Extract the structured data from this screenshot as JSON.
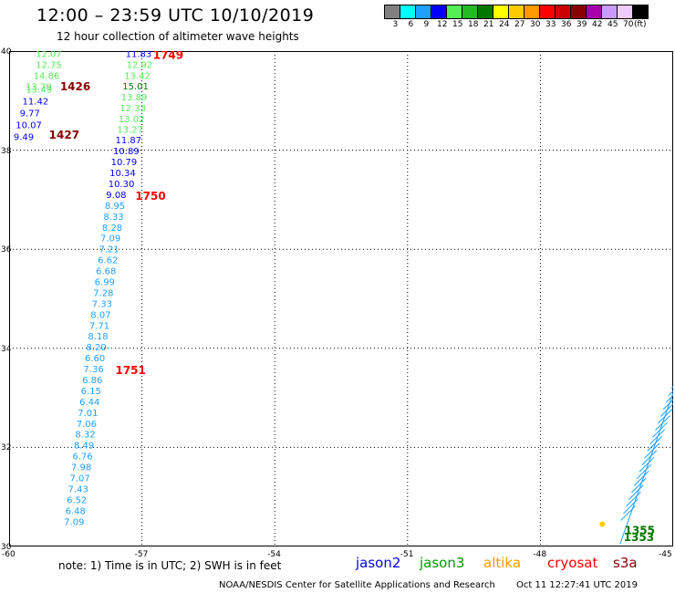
{
  "header": {
    "title": "12:00 – 23:59 UTC 10/10/2019",
    "subtitle": "12 hour collection of altimeter wave heights"
  },
  "color_scale": {
    "labels": [
      "3",
      "6",
      "9",
      "12",
      "15",
      "18",
      "21",
      "24",
      "27",
      "30",
      "33",
      "36",
      "39",
      "42",
      "45",
      "70",
      "(ft)"
    ],
    "colors": [
      "#808080",
      "#00ffff",
      "#1ea0ff",
      "#0000ff",
      "#55ee55",
      "#22bb22",
      "#007700",
      "#ffff00",
      "#ffcc00",
      "#ff9900",
      "#ff0000",
      "#cc0000",
      "#880000",
      "#aa00aa",
      "#cc99ff",
      "#eeccff",
      "#000000"
    ]
  },
  "axes": {
    "y_labels": [
      "40",
      "38",
      "36",
      "34",
      "32",
      "30"
    ],
    "x_labels": [
      "-60",
      "-57",
      "-54",
      "-51",
      "-48",
      "-45"
    ]
  },
  "chart_data": {
    "type": "scatter",
    "title": "12:00 – 23:59 UTC 10/10/2019",
    "subtitle": "12 hour collection of altimeter wave heights",
    "xlabel": "",
    "ylabel": "",
    "xlim": [
      -60,
      -45
    ],
    "ylim": [
      30,
      40
    ],
    "grid": true,
    "units": "(ft)",
    "series": [
      {
        "name": "jason3",
        "color": "#55ee55",
        "points": [
          {
            "lon": -59.4,
            "lat": 39.95,
            "swh": "12.07"
          },
          {
            "lon": -59.4,
            "lat": 39.73,
            "swh": "12.75"
          },
          {
            "lon": -59.45,
            "lat": 39.51,
            "swh": "14.86"
          },
          {
            "lon": -59.63,
            "lat": 39.29,
            "swh": "13.79"
          },
          {
            "lon": -59.62,
            "lat": 39.24,
            "swh": "13.49"
          },
          {
            "lon": -57.37,
            "lat": 39.95,
            "swh": "11.83",
            "color": "#0000ff"
          },
          {
            "lon": -57.35,
            "lat": 39.73,
            "swh": "12.92"
          },
          {
            "lon": -57.4,
            "lat": 39.51,
            "swh": "13.42"
          },
          {
            "lon": -57.44,
            "lat": 39.3,
            "swh": "15.01",
            "color": "#007700"
          },
          {
            "lon": -57.47,
            "lat": 39.08,
            "swh": "13.89"
          },
          {
            "lon": -57.5,
            "lat": 38.86,
            "swh": "12.33"
          },
          {
            "lon": -57.53,
            "lat": 38.64,
            "swh": "13.02"
          },
          {
            "lon": -57.56,
            "lat": 38.43,
            "swh": "13.27"
          }
        ]
      },
      {
        "name": "jason2",
        "color": "#0000ff",
        "points": [
          {
            "lon": -59.7,
            "lat": 39.0,
            "swh": "11.42"
          },
          {
            "lon": -59.76,
            "lat": 38.76,
            "swh": "9.77"
          },
          {
            "lon": -59.85,
            "lat": 38.52,
            "swh": "10.07"
          },
          {
            "lon": -59.9,
            "lat": 38.28,
            "swh": "9.49"
          },
          {
            "lon": -57.6,
            "lat": 38.21,
            "swh": "11.87"
          },
          {
            "lon": -57.65,
            "lat": 37.99,
            "swh": "10.89"
          },
          {
            "lon": -57.7,
            "lat": 37.77,
            "swh": "10.79"
          },
          {
            "lon": -57.73,
            "lat": 37.55,
            "swh": "10.34"
          },
          {
            "lon": -57.76,
            "lat": 37.33,
            "swh": "10.30"
          },
          {
            "lon": -57.81,
            "lat": 37.11,
            "swh": "9.08"
          }
        ]
      },
      {
        "name": "altika",
        "color": "#1ea0ff",
        "points": [
          {
            "lon": -57.84,
            "lat": 36.89,
            "swh": "8.95"
          },
          {
            "lon": -57.87,
            "lat": 36.67,
            "swh": "8.33"
          },
          {
            "lon": -57.9,
            "lat": 36.45,
            "swh": "8.28"
          },
          {
            "lon": -57.94,
            "lat": 36.23,
            "swh": "7.09"
          },
          {
            "lon": -57.97,
            "lat": 36.01,
            "swh": "7.21"
          },
          {
            "lon": -58.0,
            "lat": 35.79,
            "swh": "6.62"
          },
          {
            "lon": -58.04,
            "lat": 35.57,
            "swh": "6.68"
          },
          {
            "lon": -58.07,
            "lat": 35.35,
            "swh": "6.99"
          },
          {
            "lon": -58.1,
            "lat": 35.13,
            "swh": "7.28"
          },
          {
            "lon": -58.13,
            "lat": 34.91,
            "swh": "7.33"
          },
          {
            "lon": -58.16,
            "lat": 34.69,
            "swh": "8.07"
          },
          {
            "lon": -58.19,
            "lat": 34.47,
            "swh": "7.71"
          },
          {
            "lon": -58.22,
            "lat": 34.25,
            "swh": "8.18"
          },
          {
            "lon": -58.26,
            "lat": 34.03,
            "swh": "8.20"
          },
          {
            "lon": -58.29,
            "lat": 33.81,
            "swh": "6.60"
          },
          {
            "lon": -58.32,
            "lat": 33.59,
            "swh": "7.36"
          },
          {
            "lon": -58.35,
            "lat": 33.37,
            "swh": "6.86"
          },
          {
            "lon": -58.38,
            "lat": 33.15,
            "swh": "6.15"
          },
          {
            "lon": -58.41,
            "lat": 32.93,
            "swh": "6.44"
          },
          {
            "lon": -58.45,
            "lat": 32.71,
            "swh": "7.01"
          },
          {
            "lon": -58.48,
            "lat": 32.49,
            "swh": "7.06"
          },
          {
            "lon": -58.51,
            "lat": 32.27,
            "swh": "8.32"
          },
          {
            "lon": -58.54,
            "lat": 32.05,
            "swh": "8.49"
          },
          {
            "lon": -58.57,
            "lat": 31.83,
            "swh": "6.76"
          },
          {
            "lon": -58.6,
            "lat": 31.61,
            "swh": "7.98"
          },
          {
            "lon": -58.63,
            "lat": 31.39,
            "swh": "7.07"
          },
          {
            "lon": -58.67,
            "lat": 31.17,
            "swh": "7.43"
          },
          {
            "lon": -58.7,
            "lat": 30.95,
            "swh": "6.52"
          },
          {
            "lon": -58.73,
            "lat": 30.73,
            "swh": "6.48"
          },
          {
            "lon": -58.76,
            "lat": 30.51,
            "swh": "7.09"
          }
        ]
      }
    ],
    "time_labels": [
      {
        "lon": -58.85,
        "lat": 39.28,
        "text": "1426",
        "color": "#880000"
      },
      {
        "lon": -59.1,
        "lat": 38.31,
        "text": "1427",
        "color": "#880000"
      },
      {
        "lon": -56.75,
        "lat": 39.92,
        "text": "1749",
        "color": "#ff0000"
      },
      {
        "lon": -57.15,
        "lat": 37.07,
        "text": "1750",
        "color": "#ff0000"
      },
      {
        "lon": -57.6,
        "lat": 33.55,
        "text": "1751",
        "color": "#ff0000"
      },
      {
        "lon": -46.1,
        "lat": 30.32,
        "text": "1355",
        "color": "#007700"
      },
      {
        "lon": -46.12,
        "lat": 30.18,
        "text": "1353",
        "color": "#007700"
      }
    ]
  },
  "legend": {
    "note": "note:  1) Time is in UTC;  2) SWH is in feet",
    "items": [
      {
        "label": "jason2",
        "color": "#0000ff"
      },
      {
        "label": "jason3",
        "color": "#009900"
      },
      {
        "label": "altika",
        "color": "#ff9900"
      },
      {
        "label": "cryosat",
        "color": "#ff0000"
      },
      {
        "label": "s3a",
        "color": "#880000"
      }
    ]
  },
  "footer": {
    "credit": "NOAA/NESDIS Center for Satellite Applications and Research",
    "timestamp": "Oct 11 12:27:41 UTC 2019"
  }
}
